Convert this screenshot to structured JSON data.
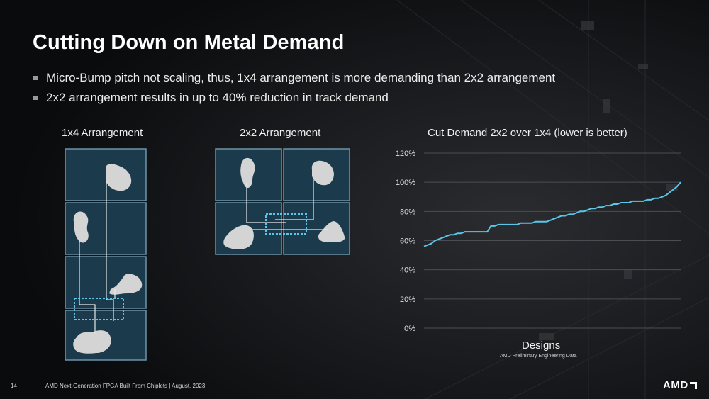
{
  "slide": {
    "title": "Cutting Down on Metal Demand",
    "bullets": [
      "Micro-Bump pitch not scaling, thus, 1x4 arrangement is more demanding than 2x2 arrangement",
      "2x2 arrangement results in up to 40% reduction in track demand"
    ]
  },
  "diagrams": {
    "left_label": "1x4 Arrangement",
    "middle_label": "2x2 Arrangement"
  },
  "chart_data": {
    "type": "line",
    "title": "Cut Demand 2x2 over 1x4 (lower is better)",
    "xlabel": "Designs",
    "ylabel": "",
    "note": "AMD Preliminary Engineering Data",
    "yticks": [
      "0%",
      "20%",
      "40%",
      "60%",
      "80%",
      "100%",
      "120%"
    ],
    "ylim": [
      0,
      120
    ],
    "series": [
      {
        "name": "Cut Demand",
        "color": "#5cc6e8",
        "values": [
          56,
          57,
          58,
          60,
          61,
          62,
          63,
          64,
          64,
          65,
          65,
          66,
          66,
          66,
          66,
          66,
          66,
          66,
          70,
          70,
          71,
          71,
          71,
          71,
          71,
          71,
          72,
          72,
          72,
          72,
          73,
          73,
          73,
          73,
          74,
          75,
          76,
          77,
          77,
          78,
          78,
          79,
          80,
          80,
          81,
          82,
          82,
          83,
          83,
          84,
          84,
          85,
          85,
          86,
          86,
          86,
          87,
          87,
          87,
          87,
          88,
          88,
          89,
          89,
          90,
          91,
          93,
          95,
          97,
          100
        ]
      }
    ]
  },
  "footer": {
    "page": "14",
    "text": "AMD Next-Generation FPGA Built From Chiplets  |  August, 2023",
    "logo": "AMD"
  }
}
